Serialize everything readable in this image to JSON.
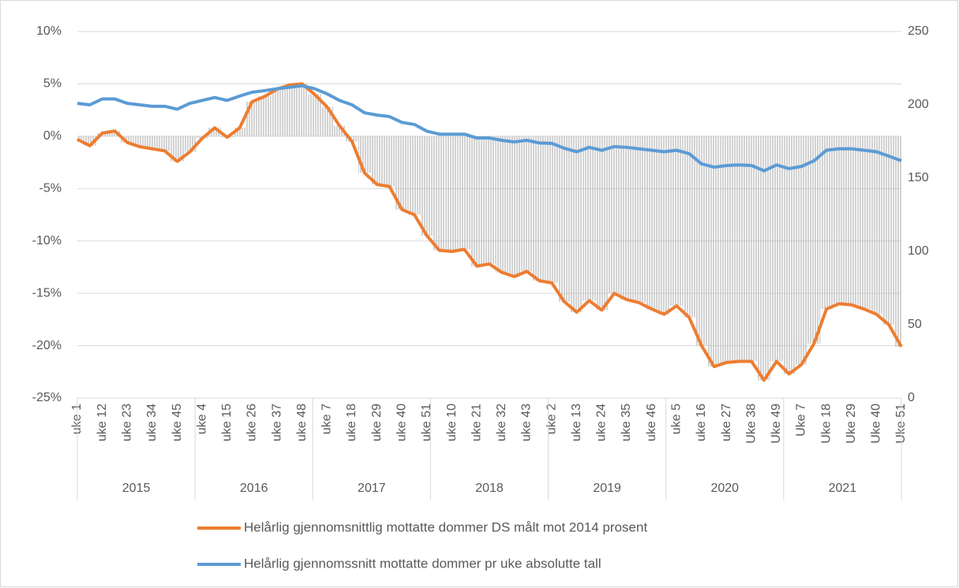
{
  "chart_data": {
    "type": "line",
    "categories": [
      "uke 1",
      null,
      "uke 12",
      null,
      "uke 23",
      null,
      "uke 34",
      null,
      "uke 45",
      null,
      "uke 4",
      null,
      "uke 15",
      null,
      "uke 26",
      null,
      "uke 37",
      null,
      "uke 48",
      null,
      "uke 7",
      null,
      "uke 18",
      null,
      "uke 29",
      null,
      "uke 40",
      null,
      "uke 51",
      null,
      "uke 10",
      null,
      "uke 21",
      null,
      "uke 32",
      null,
      "uke 43",
      null,
      "uke 2",
      null,
      "uke 13",
      null,
      "uke 24",
      null,
      "uke 35",
      null,
      "uke 46",
      null,
      "uke 5",
      null,
      "uke 16",
      null,
      "uke 27",
      null,
      "Uke 38",
      null,
      "Uke 49",
      null,
      "Uke 7",
      null,
      "Uke 18",
      null,
      "Uke 29",
      null,
      "Uke 40",
      null,
      "Uke 51"
    ],
    "years": [
      "2015",
      "2016",
      "2017",
      "2018",
      "2019",
      "2020",
      "2021"
    ],
    "series": [
      {
        "name": "Helårlig gjennomsnittlig mottatte dommer DS målt mot 2014 prosent",
        "color": "#ed7d31",
        "axis": "y",
        "values": [
          -0.3,
          -0.9,
          0.3,
          0.5,
          -0.6,
          -1.0,
          -1.2,
          -1.4,
          -2.4,
          -1.5,
          -0.2,
          0.8,
          -0.1,
          0.8,
          3.3,
          3.8,
          4.5,
          4.9,
          5.0,
          4.0,
          2.8,
          1.0,
          -0.5,
          -3.5,
          -4.6,
          -4.8,
          -7.0,
          -7.5,
          -9.5,
          -10.9,
          -11.0,
          -10.8,
          -12.4,
          -12.2,
          -13.0,
          -13.4,
          -12.9,
          -13.8,
          -14.0,
          -15.8,
          -16.8,
          -15.7,
          -16.6,
          -15.0,
          -15.6,
          -15.9,
          -16.5,
          -17.0,
          -16.2,
          -17.3,
          -20.0,
          -22.0,
          -21.6,
          -21.5,
          -21.5,
          -23.3,
          -21.5,
          -22.7,
          -21.8,
          -19.8,
          -16.5,
          -16.0,
          -16.1,
          -16.5,
          -17.0,
          -18.0,
          -20.1
        ]
      },
      {
        "name": "Helårlig gjennomssnitt mottatte dommer pr uke absolutte tall",
        "color": "#5b9bd5",
        "axis": "y2",
        "values": [
          201,
          200,
          204,
          204,
          201,
          200,
          199,
          199,
          197,
          201,
          203,
          205,
          203,
          206,
          208.6,
          209.7,
          211,
          212,
          213,
          211,
          207.5,
          203,
          200,
          194.6,
          193,
          192,
          188,
          186.6,
          182,
          180,
          180,
          180,
          177.4,
          177.4,
          175.8,
          174.7,
          175.8,
          174,
          173.7,
          170.4,
          168,
          171,
          169,
          171.5,
          171,
          170,
          169,
          168,
          169,
          166.7,
          159.7,
          157.5,
          158.6,
          159,
          158.6,
          155,
          159,
          156.5,
          158,
          161.8,
          169,
          170,
          170,
          169,
          168,
          165,
          161.8
        ]
      }
    ],
    "area_color": "#a6a6a6",
    "ylim": [
      -25,
      10
    ],
    "yticks": [
      {
        "value": -25,
        "label": "-25%"
      },
      {
        "value": -20,
        "label": "-20%"
      },
      {
        "value": -15,
        "label": "-15%"
      },
      {
        "value": -10,
        "label": "-10%"
      },
      {
        "value": -5,
        "label": "-5%"
      },
      {
        "value": 0,
        "label": "0%"
      },
      {
        "value": 5,
        "label": "5%"
      },
      {
        "value": 10,
        "label": "10%"
      }
    ],
    "y2lim": [
      0,
      250
    ],
    "y2ticks": [
      0,
      50,
      100,
      150,
      200,
      250
    ],
    "grid": true
  }
}
